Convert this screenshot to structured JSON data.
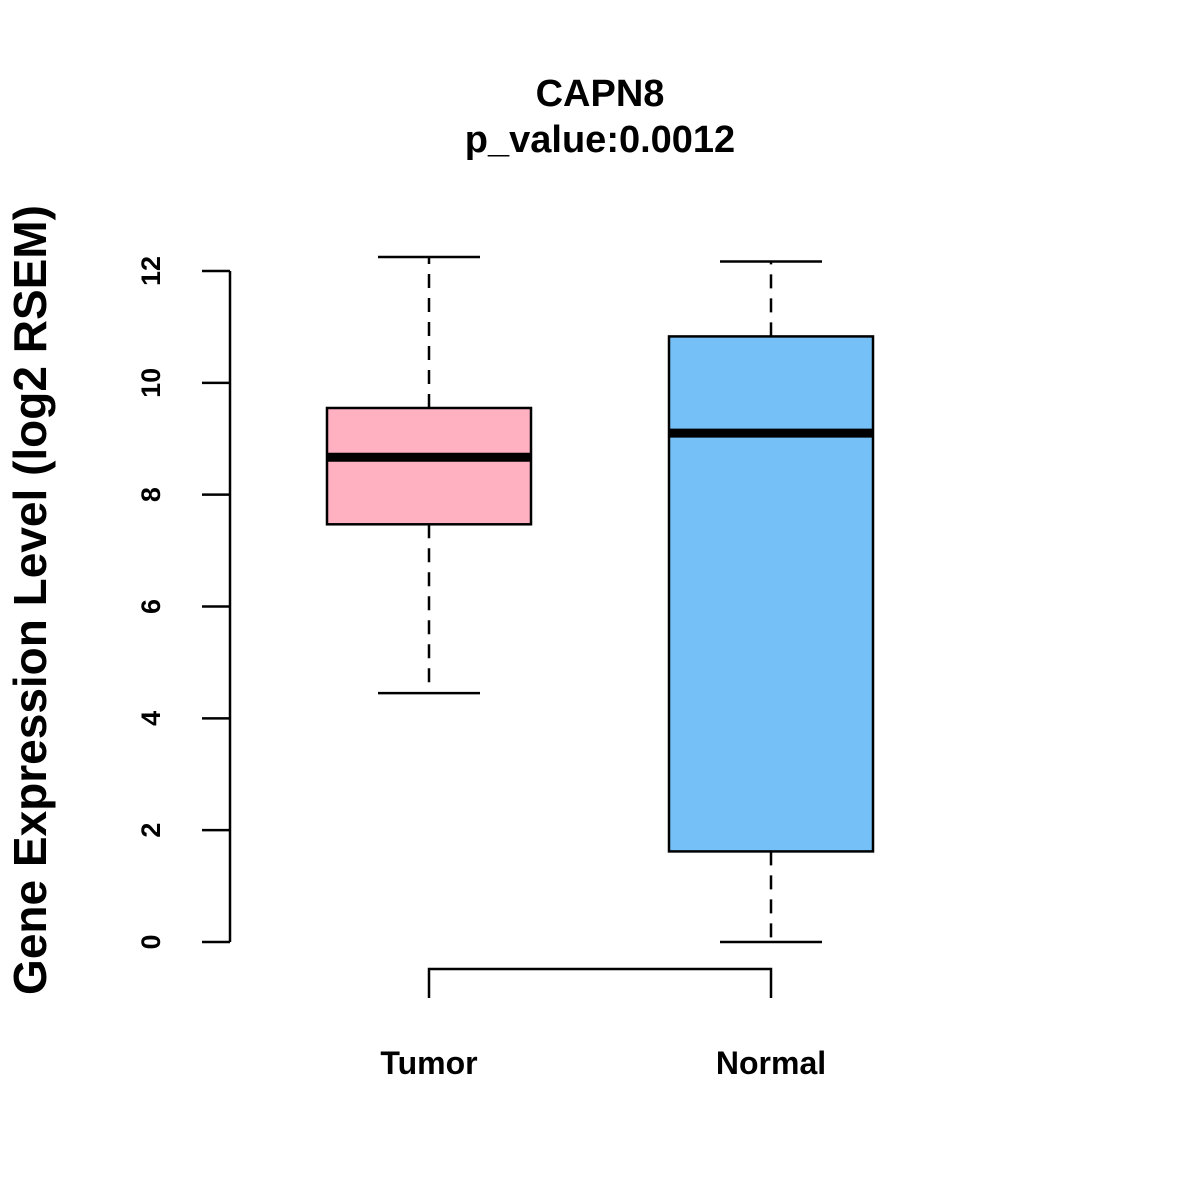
{
  "chart_data": {
    "type": "boxplot",
    "title": "CAPN8",
    "subtitle": "p_value:0.0012",
    "xlabel": "",
    "ylabel": "Gene Expression Level (log2 RSEM)",
    "ylim": [
      0,
      12
    ],
    "yticks": [
      "0",
      "2",
      "4",
      "6",
      "8",
      "10",
      "12"
    ],
    "grid": false,
    "categories": [
      "Tumor",
      "Normal"
    ],
    "boxes": [
      {
        "category": "Tumor",
        "whisker_low": 4.45,
        "q1": 7.47,
        "median": 8.67,
        "q3": 9.55,
        "whisker_high": 12.25,
        "color": "#FFB1C2"
      },
      {
        "category": "Normal",
        "whisker_low": 0.0,
        "q1": 1.62,
        "median": 9.1,
        "q3": 10.83,
        "whisker_high": 12.17,
        "color": "#76C0F8"
      }
    ],
    "comparison_bracket": [
      "Tumor",
      "Normal"
    ]
  }
}
